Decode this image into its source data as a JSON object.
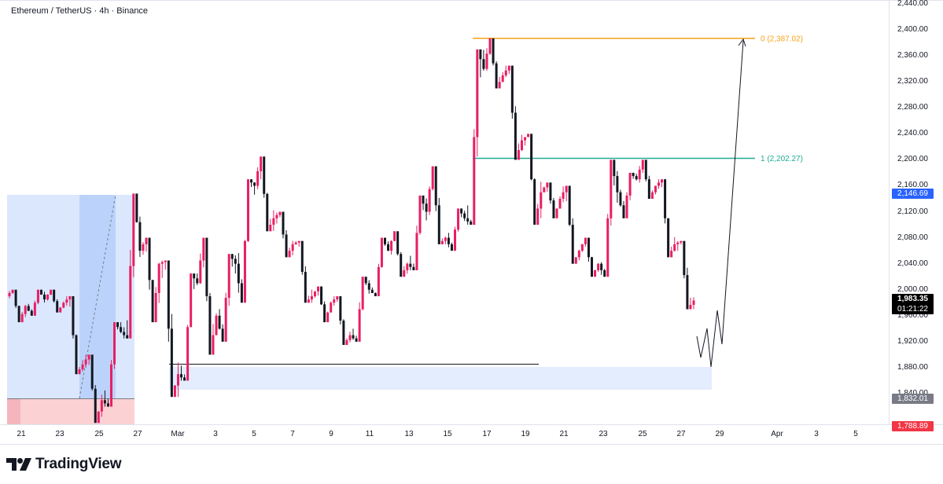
{
  "header": {
    "title": "Ethereum / TetherUS · 4h · Binance"
  },
  "brand": {
    "name": "TradingView",
    "icon": "tradingview-logo-icon"
  },
  "price_axis": {
    "ticks": [
      "2,440.00",
      "2,400.00",
      "2,360.00",
      "2,320.00",
      "2,280.00",
      "2,240.00",
      "2,200.00",
      "2,160.00",
      "2,120.00",
      "2,080.00",
      "2,040.00",
      "2,000.00",
      "1,960.00",
      "1,920.00",
      "1,880.00",
      "1,840.00"
    ],
    "tick_values": [
      2440,
      2400,
      2360,
      2320,
      2280,
      2240,
      2200,
      2160,
      2120,
      2080,
      2040,
      2000,
      1960,
      1920,
      1880,
      1840
    ],
    "badges": {
      "blue": {
        "label": "2,146.69",
        "value": 2146.69,
        "color": "#2962ff"
      },
      "last": {
        "label": "1,983.35",
        "value": 1983.35,
        "color": "#000000"
      },
      "countdown": {
        "label": "01:21:22"
      },
      "gray": {
        "label": "1,832.01",
        "value": 1832.01,
        "color": "#787b86"
      },
      "red": {
        "label": "1,788.89",
        "value": 1788.89,
        "color": "#f23645"
      }
    }
  },
  "time_axis": {
    "labels": [
      "21",
      "23",
      "25",
      "27",
      "Mar",
      "3",
      "5",
      "7",
      "9",
      "11",
      "13",
      "15",
      "17",
      "19",
      "21",
      "23",
      "25",
      "27",
      "29",
      "Apr",
      "3",
      "5"
    ]
  },
  "fib": {
    "level0": {
      "label": "0 (2,387.02)",
      "value": 2387.02,
      "color": "#f7a21b"
    },
    "level1": {
      "label": "1 (2,202.27)",
      "value": 2202.27,
      "color": "#22ab94"
    }
  },
  "colors": {
    "up": "#e91e63",
    "down": "#131722",
    "zone": "#e3edfd",
    "box_blue": "#bbd3fb",
    "box_red": "#fbd1d4"
  },
  "chart_data": {
    "type": "candlestick",
    "title": "Ethereum / TetherUS · 4h · Binance",
    "ylim": [
      1783,
      2445
    ],
    "x_labels": [
      "21",
      "23",
      "25",
      "27",
      "Mar",
      "3",
      "5",
      "7",
      "9",
      "11",
      "13",
      "15",
      "17",
      "19",
      "21",
      "23",
      "25",
      "27",
      "29",
      "Apr",
      "3",
      "5"
    ],
    "grid": false,
    "candles": [
      {
        "date": "Feb 20",
        "o": 1990,
        "h": 2000,
        "l": 1950,
        "c": 1975
      },
      {
        "date": "Feb 21",
        "o": 1975,
        "h": 2000,
        "l": 1960,
        "c": 1985
      },
      {
        "date": "Feb 22",
        "o": 1985,
        "h": 2000,
        "l": 1965,
        "c": 1980
      },
      {
        "date": "Feb 23",
        "o": 1980,
        "h": 1990,
        "l": 1870,
        "c": 1885
      },
      {
        "date": "Feb 24",
        "o": 1885,
        "h": 1900,
        "l": 1795,
        "c": 1830
      },
      {
        "date": "Feb 25",
        "o": 1830,
        "h": 1950,
        "l": 1820,
        "c": 1935
      },
      {
        "date": "Feb 26",
        "o": 1935,
        "h": 2148,
        "l": 1925,
        "c": 2060
      },
      {
        "date": "Feb 27",
        "o": 2060,
        "h": 2080,
        "l": 1950,
        "c": 2040
      },
      {
        "date": "Feb 28",
        "o": 2040,
        "h": 2045,
        "l": 1835,
        "c": 1870
      },
      {
        "date": "Mar 1",
        "o": 1870,
        "h": 2025,
        "l": 1860,
        "c": 2010
      },
      {
        "date": "Mar 2",
        "o": 2010,
        "h": 2080,
        "l": 1900,
        "c": 1960
      },
      {
        "date": "Mar 3",
        "o": 1960,
        "h": 2055,
        "l": 1920,
        "c": 2040
      },
      {
        "date": "Mar 4",
        "o": 2040,
        "h": 2170,
        "l": 1980,
        "c": 2160
      },
      {
        "date": "Mar 5",
        "o": 2160,
        "h": 2205,
        "l": 2090,
        "c": 2110
      },
      {
        "date": "Mar 6",
        "o": 2110,
        "h": 2120,
        "l": 2050,
        "c": 2070
      },
      {
        "date": "Mar 7",
        "o": 2070,
        "h": 2075,
        "l": 1980,
        "c": 1990
      },
      {
        "date": "Mar 8",
        "o": 1990,
        "h": 2005,
        "l": 1950,
        "c": 1980
      },
      {
        "date": "Mar 9",
        "o": 1980,
        "h": 1990,
        "l": 1915,
        "c": 1930
      },
      {
        "date": "Mar 10",
        "o": 1930,
        "h": 2020,
        "l": 1920,
        "c": 2000
      },
      {
        "date": "Mar 11",
        "o": 2000,
        "h": 2080,
        "l": 1990,
        "c": 2060
      },
      {
        "date": "Mar 12",
        "o": 2060,
        "h": 2090,
        "l": 2020,
        "c": 2040
      },
      {
        "date": "Mar 13",
        "o": 2040,
        "h": 2145,
        "l": 2030,
        "c": 2120
      },
      {
        "date": "Mar 14",
        "o": 2120,
        "h": 2190,
        "l": 2070,
        "c": 2080
      },
      {
        "date": "Mar 15",
        "o": 2080,
        "h": 2125,
        "l": 2060,
        "c": 2110
      },
      {
        "date": "Mar 16",
        "o": 2110,
        "h": 2370,
        "l": 2100,
        "c": 2340
      },
      {
        "date": "Mar 17",
        "o": 2340,
        "h": 2387,
        "l": 2310,
        "c": 2330
      },
      {
        "date": "Mar 18",
        "o": 2330,
        "h": 2345,
        "l": 2200,
        "c": 2230
      },
      {
        "date": "Mar 19",
        "o": 2230,
        "h": 2240,
        "l": 2100,
        "c": 2150
      },
      {
        "date": "Mar 20",
        "o": 2150,
        "h": 2165,
        "l": 2110,
        "c": 2140
      },
      {
        "date": "Mar 21",
        "o": 2140,
        "h": 2160,
        "l": 2040,
        "c": 2060
      },
      {
        "date": "Mar 22",
        "o": 2060,
        "h": 2080,
        "l": 2020,
        "c": 2040
      },
      {
        "date": "Mar 23",
        "o": 2040,
        "h": 2200,
        "l": 2020,
        "c": 2150
      },
      {
        "date": "Mar 24",
        "o": 2150,
        "h": 2180,
        "l": 2110,
        "c": 2170
      },
      {
        "date": "Mar 25",
        "o": 2170,
        "h": 2200,
        "l": 2140,
        "c": 2160
      },
      {
        "date": "Mar 26",
        "o": 2160,
        "h": 2170,
        "l": 2050,
        "c": 2070
      },
      {
        "date": "Mar 27",
        "o": 2070,
        "h": 2075,
        "l": 1970,
        "c": 1983.35
      }
    ]
  }
}
